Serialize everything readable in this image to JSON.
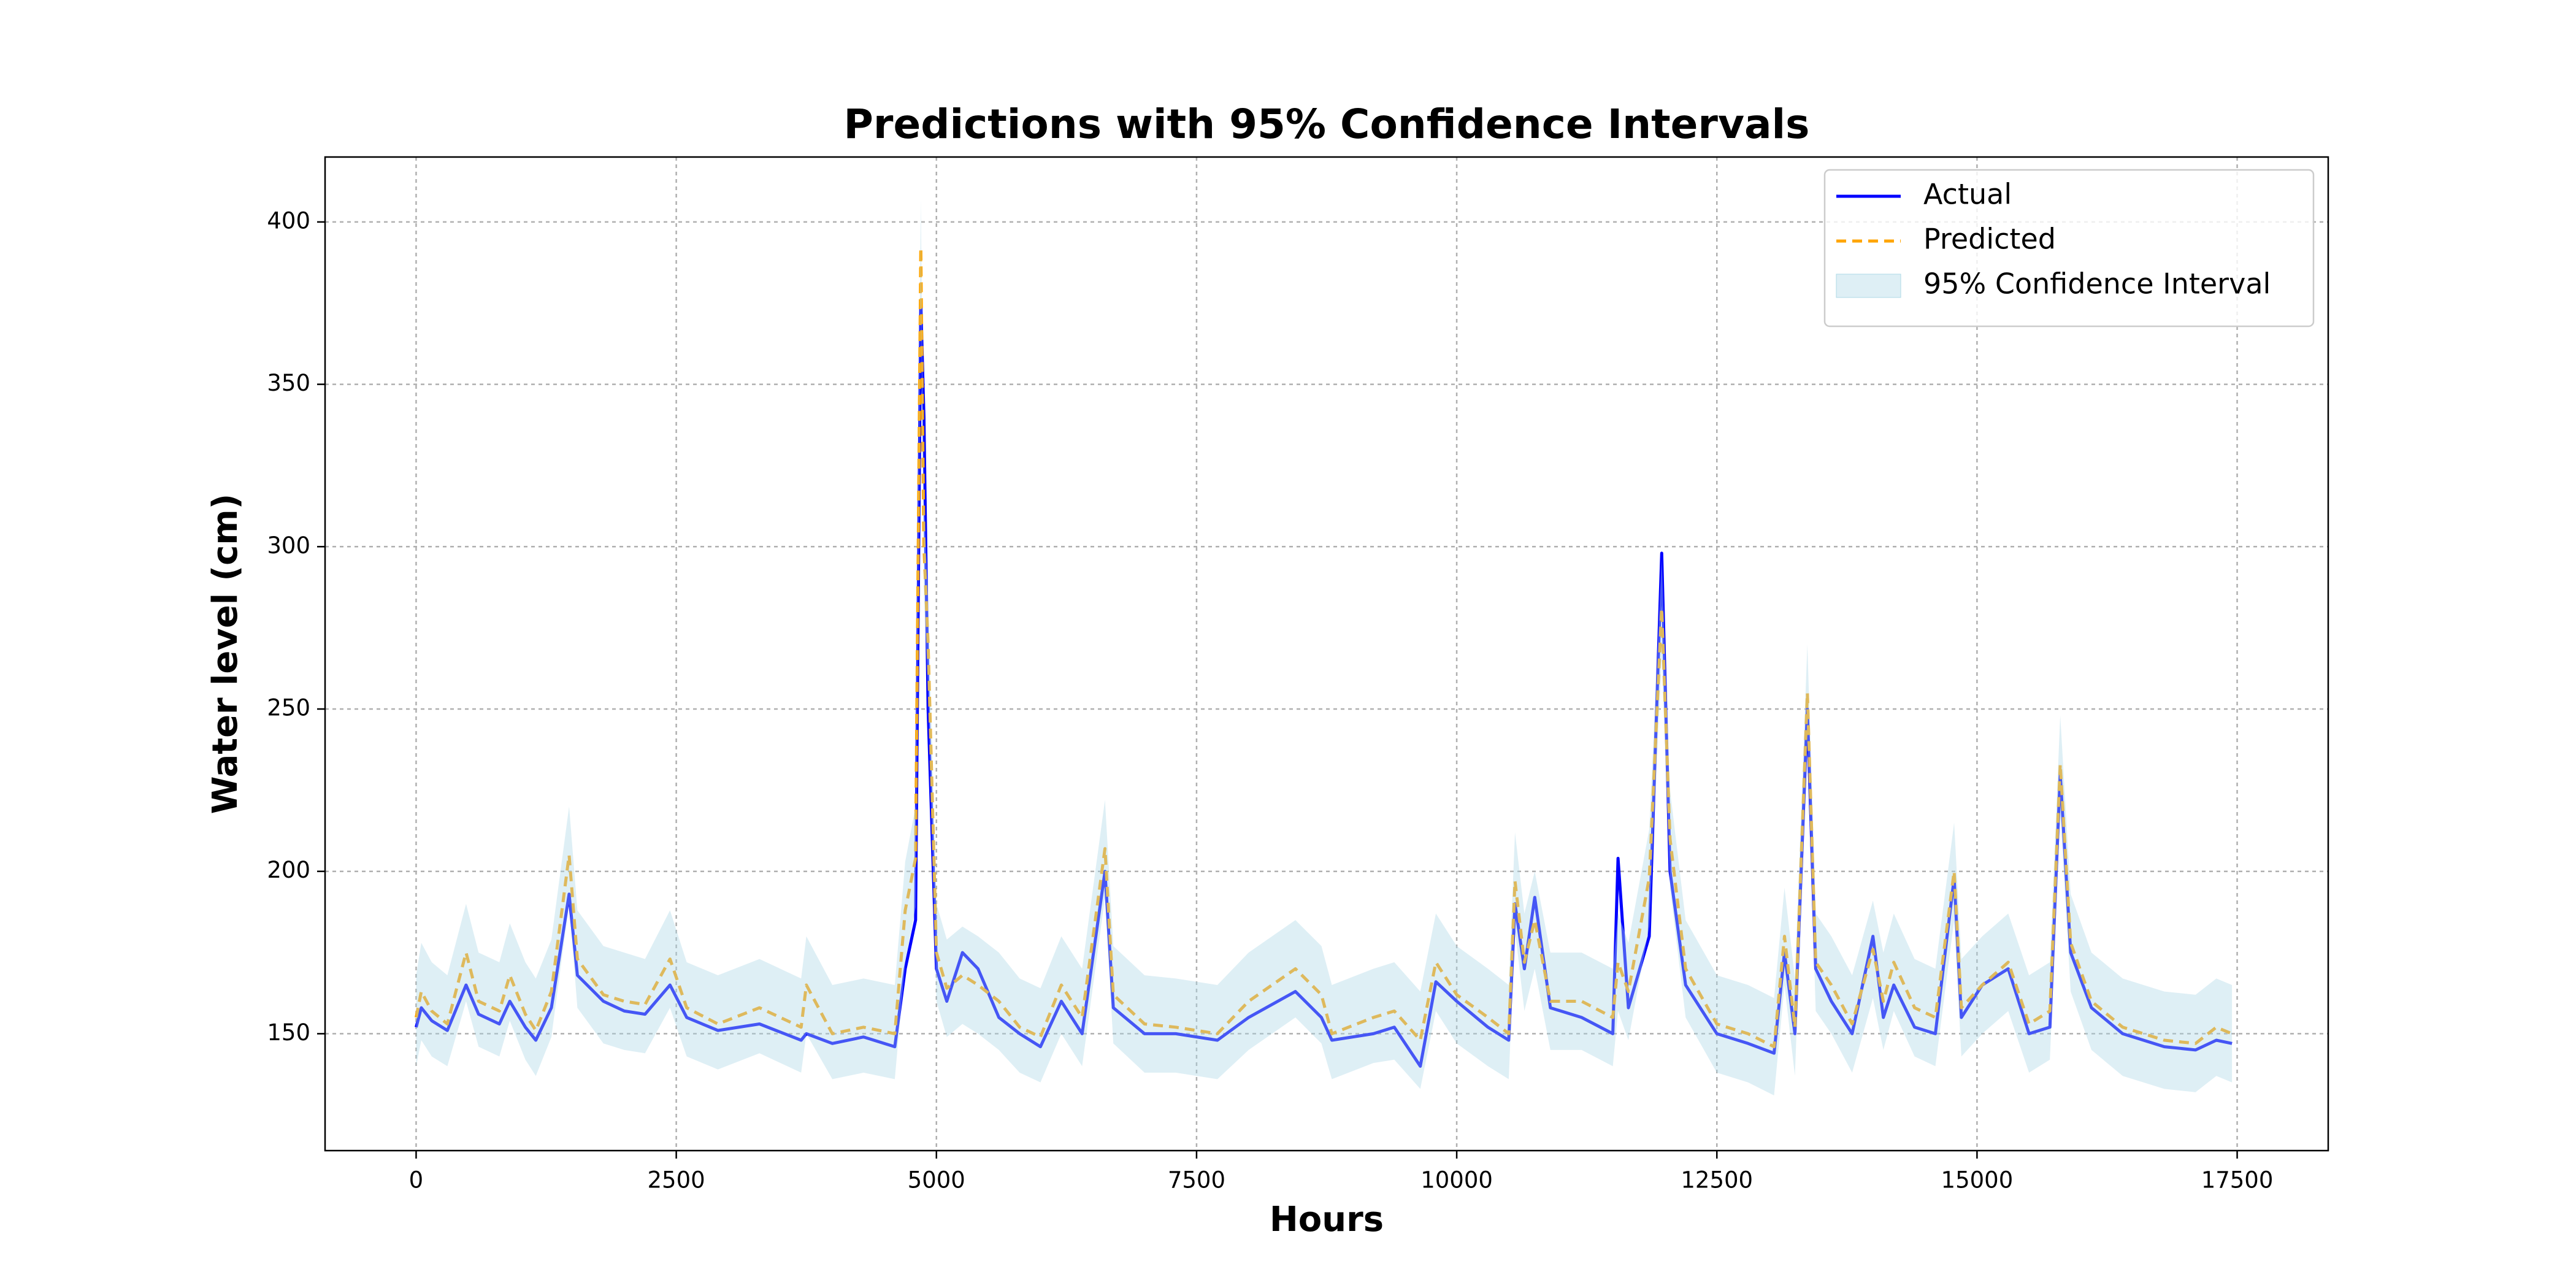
{
  "chart_data": {
    "type": "line",
    "title": "Predictions with 95% Confidence Intervals",
    "x_label": "Hours",
    "y_label": "Water level (cm)",
    "x": [
      0,
      50,
      150,
      300,
      480,
      600,
      800,
      900,
      1050,
      1150,
      1300,
      1470,
      1550,
      1800,
      2000,
      2200,
      2440,
      2600,
      2900,
      3300,
      3700,
      3750,
      4000,
      4300,
      4600,
      4700,
      4800,
      4850,
      4880,
      4920,
      5000,
      5100,
      5250,
      5400,
      5600,
      5800,
      6000,
      6200,
      6400,
      6620,
      6700,
      7000,
      7300,
      7700,
      8000,
      8450,
      8700,
      8800,
      9200,
      9400,
      9650,
      9800,
      10000,
      10300,
      10500,
      10560,
      10650,
      10750,
      10900,
      11200,
      11500,
      11550,
      11650,
      11850,
      11970,
      12050,
      12200,
      12500,
      12800,
      13050,
      13150,
      13250,
      13370,
      13450,
      13600,
      13800,
      14000,
      14100,
      14200,
      14400,
      14600,
      14780,
      14850,
      15050,
      15300,
      15500,
      15700,
      15800,
      15900,
      16100,
      16400,
      16800,
      17100,
      17300,
      17450
    ],
    "series": [
      {
        "name": "Actual",
        "color": "#0000ff",
        "linestyle": "solid",
        "values": [
          152,
          158,
          154,
          151,
          165,
          156,
          153,
          160,
          152,
          148,
          158,
          193,
          168,
          160,
          157,
          156,
          165,
          155,
          151,
          153,
          148,
          150,
          147,
          149,
          146,
          170,
          185,
          375,
          340,
          250,
          170,
          160,
          175,
          170,
          155,
          150,
          146,
          160,
          150,
          200,
          158,
          150,
          150,
          148,
          155,
          163,
          155,
          148,
          150,
          152,
          140,
          166,
          160,
          152,
          148,
          190,
          170,
          192,
          158,
          155,
          150,
          204,
          158,
          180,
          298,
          200,
          165,
          150,
          147,
          144,
          175,
          150,
          250,
          170,
          160,
          150,
          180,
          155,
          165,
          152,
          150,
          198,
          155,
          165,
          170,
          150,
          152,
          230,
          175,
          158,
          150,
          146,
          145,
          148,
          147
        ]
      },
      {
        "name": "Predicted",
        "color": "#ffa500",
        "linestyle": "dashed",
        "values": [
          155,
          163,
          157,
          153,
          175,
          160,
          157,
          168,
          156,
          151,
          163,
          205,
          173,
          162,
          160,
          159,
          173,
          158,
          153,
          158,
          152,
          165,
          150,
          152,
          150,
          188,
          204,
          392,
          300,
          270,
          175,
          164,
          168,
          165,
          160,
          152,
          149,
          165,
          155,
          207,
          162,
          153,
          152,
          150,
          160,
          170,
          162,
          150,
          155,
          157,
          148,
          172,
          162,
          155,
          150,
          197,
          172,
          185,
          160,
          160,
          155,
          172,
          163,
          198,
          281,
          210,
          170,
          153,
          150,
          146,
          180,
          152,
          255,
          172,
          165,
          153,
          176,
          160,
          172,
          158,
          155,
          200,
          158,
          165,
          172,
          153,
          157,
          233,
          178,
          160,
          152,
          148,
          147,
          152,
          150
        ]
      },
      {
        "name": "95% Confidence Interval",
        "color": "#add8e6",
        "kind": "band",
        "lower": [
          140,
          148,
          143,
          140,
          160,
          146,
          143,
          154,
          142,
          137,
          149,
          190,
          158,
          147,
          145,
          144,
          158,
          143,
          139,
          144,
          138,
          150,
          136,
          138,
          136,
          172,
          189,
          378,
          285,
          255,
          160,
          149,
          153,
          150,
          145,
          138,
          135,
          150,
          140,
          192,
          147,
          138,
          138,
          136,
          145,
          155,
          147,
          136,
          141,
          142,
          133,
          157,
          147,
          140,
          136,
          182,
          157,
          170,
          145,
          145,
          140,
          157,
          148,
          183,
          266,
          195,
          155,
          138,
          135,
          131,
          165,
          137,
          240,
          157,
          150,
          138,
          161,
          145,
          157,
          143,
          140,
          185,
          143,
          150,
          157,
          138,
          142,
          218,
          163,
          145,
          137,
          133,
          132,
          137,
          135
        ],
        "upper": [
          168,
          178,
          172,
          168,
          190,
          175,
          172,
          184,
          172,
          167,
          179,
          220,
          188,
          177,
          175,
          173,
          188,
          172,
          168,
          173,
          167,
          180,
          165,
          167,
          165,
          203,
          220,
          407,
          315,
          285,
          190,
          179,
          183,
          180,
          175,
          167,
          164,
          180,
          170,
          222,
          177,
          168,
          167,
          165,
          175,
          185,
          177,
          165,
          170,
          172,
          163,
          187,
          177,
          170,
          165,
          212,
          187,
          200,
          175,
          175,
          170,
          187,
          178,
          213,
          296,
          225,
          185,
          168,
          165,
          161,
          195,
          167,
          270,
          187,
          180,
          168,
          191,
          175,
          187,
          173,
          170,
          215,
          173,
          180,
          187,
          168,
          172,
          248,
          193,
          175,
          167,
          163,
          162,
          167,
          165
        ]
      }
    ],
    "xlim": [
      -875,
      18375
    ],
    "ylim": [
      114,
      420
    ],
    "xticks": [
      0,
      2500,
      5000,
      7500,
      10000,
      12500,
      15000,
      17500
    ],
    "yticks": [
      150,
      200,
      250,
      300,
      350,
      400
    ],
    "grid": true,
    "legend": "upper right"
  }
}
